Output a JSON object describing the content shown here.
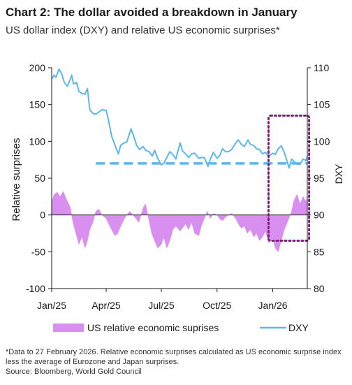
{
  "title": "Chart 2: The dollar avoided a breakdown in January",
  "subtitle": "US dollar index (DXY) and relative US economic surprises*",
  "footnote": "*Data to 27 February 2026. Relative economic surprises calculated as US economic surprise index less the average of Eurozone and Japan surprises.",
  "source": "Source: Bloomberg, World Gold Council",
  "colors": {
    "area": "#d98ff0",
    "line": "#5bb8e8",
    "highlight": "#7b1f7b",
    "axis": "#1a1a1a"
  },
  "chart_data": {
    "type": "area+line",
    "x_type": "date",
    "x_range": [
      "2025-01-01",
      "2026-02-27"
    ],
    "x_ticks": [
      {
        "date": "2025-01-01",
        "label": "Jan/25"
      },
      {
        "date": "2025-04-01",
        "label": "Apr/25"
      },
      {
        "date": "2025-07-01",
        "label": "Jul/25"
      },
      {
        "date": "2025-10-01",
        "label": "Oct/25"
      },
      {
        "date": "2026-01-01",
        "label": "Jan/26"
      }
    ],
    "y_left": {
      "label": "Relative surprises",
      "range": [
        -100,
        200
      ],
      "ticks": [
        "-100",
        "-50",
        "0",
        "50",
        "100",
        "150",
        "200"
      ]
    },
    "y_right": {
      "label": "DXY",
      "range": [
        80,
        110
      ],
      "ticks": [
        "80",
        "85",
        "90",
        "95",
        "100",
        "105",
        "110"
      ]
    },
    "series": [
      {
        "name": "US relative economic suprises",
        "type": "area",
        "axis": "left",
        "points": [
          [
            "2025-01-01",
            18
          ],
          [
            "2025-01-05",
            28
          ],
          [
            "2025-01-10",
            31
          ],
          [
            "2025-01-15",
            25
          ],
          [
            "2025-01-20",
            32
          ],
          [
            "2025-01-25",
            22
          ],
          [
            "2025-02-01",
            10
          ],
          [
            "2025-02-05",
            -10
          ],
          [
            "2025-02-10",
            -25
          ],
          [
            "2025-02-15",
            -40
          ],
          [
            "2025-02-20",
            -30
          ],
          [
            "2025-02-25",
            -45
          ],
          [
            "2025-03-01",
            -35
          ],
          [
            "2025-03-05",
            -20
          ],
          [
            "2025-03-10",
            -10
          ],
          [
            "2025-03-15",
            5
          ],
          [
            "2025-03-20",
            8
          ],
          [
            "2025-03-25",
            0
          ],
          [
            "2025-04-01",
            -5
          ],
          [
            "2025-04-05",
            -12
          ],
          [
            "2025-04-10",
            -20
          ],
          [
            "2025-04-15",
            -28
          ],
          [
            "2025-04-20",
            -25
          ],
          [
            "2025-04-25",
            -15
          ],
          [
            "2025-05-01",
            -5
          ],
          [
            "2025-05-05",
            0
          ],
          [
            "2025-05-10",
            5
          ],
          [
            "2025-05-15",
            0
          ],
          [
            "2025-05-20",
            -5
          ],
          [
            "2025-05-25",
            -10
          ],
          [
            "2025-06-01",
            10
          ],
          [
            "2025-06-05",
            15
          ],
          [
            "2025-06-10",
            -5
          ],
          [
            "2025-06-15",
            -25
          ],
          [
            "2025-06-20",
            -35
          ],
          [
            "2025-06-25",
            -45
          ],
          [
            "2025-07-01",
            -40
          ],
          [
            "2025-07-05",
            -30
          ],
          [
            "2025-07-10",
            -45
          ],
          [
            "2025-07-15",
            -35
          ],
          [
            "2025-07-20",
            -20
          ],
          [
            "2025-07-25",
            -15
          ],
          [
            "2025-08-01",
            -22
          ],
          [
            "2025-08-05",
            -18
          ],
          [
            "2025-08-10",
            -12
          ],
          [
            "2025-08-15",
            -20
          ],
          [
            "2025-08-20",
            -10
          ],
          [
            "2025-08-25",
            -25
          ],
          [
            "2025-09-01",
            -28
          ],
          [
            "2025-09-05",
            -15
          ],
          [
            "2025-09-10",
            -5
          ],
          [
            "2025-09-15",
            5
          ],
          [
            "2025-09-20",
            -5
          ],
          [
            "2025-09-25",
            2
          ],
          [
            "2025-10-01",
            0
          ],
          [
            "2025-10-05",
            -5
          ],
          [
            "2025-10-10",
            -8
          ],
          [
            "2025-10-15",
            -3
          ],
          [
            "2025-10-20",
            0
          ],
          [
            "2025-10-25",
            2
          ],
          [
            "2025-11-01",
            -5
          ],
          [
            "2025-11-05",
            -12
          ],
          [
            "2025-11-10",
            -18
          ],
          [
            "2025-11-15",
            -15
          ],
          [
            "2025-11-20",
            -25
          ],
          [
            "2025-11-25",
            -20
          ],
          [
            "2025-12-01",
            -30
          ],
          [
            "2025-12-05",
            -25
          ],
          [
            "2025-12-10",
            -35
          ],
          [
            "2025-12-15",
            -30
          ],
          [
            "2025-12-20",
            -22
          ],
          [
            "2025-12-25",
            -38
          ],
          [
            "2026-01-01",
            -32
          ],
          [
            "2026-01-05",
            -45
          ],
          [
            "2026-01-10",
            -50
          ],
          [
            "2026-01-15",
            -35
          ],
          [
            "2026-01-20",
            -20
          ],
          [
            "2026-01-25",
            -10
          ],
          [
            "2026-02-01",
            5
          ],
          [
            "2026-02-05",
            20
          ],
          [
            "2026-02-10",
            28
          ],
          [
            "2026-02-15",
            15
          ],
          [
            "2026-02-20",
            25
          ],
          [
            "2026-02-25",
            18
          ],
          [
            "2026-02-27",
            28
          ]
        ]
      },
      {
        "name": "DXY",
        "type": "line",
        "axis": "right",
        "points": [
          [
            "2025-01-01",
            108.5
          ],
          [
            "2025-01-05",
            109.0
          ],
          [
            "2025-01-08",
            108.7
          ],
          [
            "2025-01-13",
            109.8
          ],
          [
            "2025-01-17",
            109.3
          ],
          [
            "2025-01-22",
            108.0
          ],
          [
            "2025-01-27",
            107.5
          ],
          [
            "2025-02-01",
            108.5
          ],
          [
            "2025-02-03",
            109.0
          ],
          [
            "2025-02-06",
            107.8
          ],
          [
            "2025-02-11",
            108.0
          ],
          [
            "2025-02-15",
            106.8
          ],
          [
            "2025-02-20",
            106.5
          ],
          [
            "2025-02-25",
            106.4
          ],
          [
            "2025-03-01",
            107.2
          ],
          [
            "2025-03-05",
            104.3
          ],
          [
            "2025-03-10",
            103.8
          ],
          [
            "2025-03-15",
            103.7
          ],
          [
            "2025-03-20",
            104.0
          ],
          [
            "2025-03-25",
            104.3
          ],
          [
            "2025-04-01",
            104.2
          ],
          [
            "2025-04-05",
            102.8
          ],
          [
            "2025-04-10",
            100.7
          ],
          [
            "2025-04-15",
            99.6
          ],
          [
            "2025-04-21",
            98.3
          ],
          [
            "2025-04-25",
            99.5
          ],
          [
            "2025-05-01",
            99.8
          ],
          [
            "2025-05-05",
            99.9
          ],
          [
            "2025-05-12",
            101.7
          ],
          [
            "2025-05-16",
            100.8
          ],
          [
            "2025-05-21",
            99.5
          ],
          [
            "2025-05-26",
            98.9
          ],
          [
            "2025-06-01",
            99.3
          ],
          [
            "2025-06-05",
            98.8
          ],
          [
            "2025-06-11",
            98.6
          ],
          [
            "2025-06-16",
            98.0
          ],
          [
            "2025-06-20",
            98.8
          ],
          [
            "2025-06-25",
            97.7
          ],
          [
            "2025-07-01",
            96.8
          ],
          [
            "2025-07-05",
            97.0
          ],
          [
            "2025-07-10",
            97.8
          ],
          [
            "2025-07-15",
            98.6
          ],
          [
            "2025-07-20",
            98.2
          ],
          [
            "2025-07-25",
            97.6
          ],
          [
            "2025-08-01",
            99.8
          ],
          [
            "2025-08-05",
            98.7
          ],
          [
            "2025-08-10",
            98.3
          ],
          [
            "2025-08-15",
            97.8
          ],
          [
            "2025-08-20",
            98.3
          ],
          [
            "2025-08-25",
            98.4
          ],
          [
            "2025-09-01",
            97.7
          ],
          [
            "2025-09-05",
            97.8
          ],
          [
            "2025-09-10",
            97.8
          ],
          [
            "2025-09-16",
            96.6
          ],
          [
            "2025-09-20",
            97.6
          ],
          [
            "2025-09-25",
            98.5
          ],
          [
            "2025-10-01",
            97.7
          ],
          [
            "2025-10-05",
            98.0
          ],
          [
            "2025-10-10",
            99.0
          ],
          [
            "2025-10-15",
            98.6
          ],
          [
            "2025-10-20",
            98.6
          ],
          [
            "2025-10-25",
            98.9
          ],
          [
            "2025-11-01",
            99.8
          ],
          [
            "2025-11-05",
            100.2
          ],
          [
            "2025-11-10",
            99.6
          ],
          [
            "2025-11-15",
            99.3
          ],
          [
            "2025-11-21",
            100.2
          ],
          [
            "2025-11-25",
            99.6
          ],
          [
            "2025-12-01",
            99.4
          ],
          [
            "2025-12-05",
            99.0
          ],
          [
            "2025-12-10",
            98.9
          ],
          [
            "2025-12-15",
            98.3
          ],
          [
            "2025-12-20",
            98.5
          ],
          [
            "2025-12-25",
            98.0
          ],
          [
            "2026-01-01",
            98.4
          ],
          [
            "2026-01-05",
            98.2
          ],
          [
            "2026-01-10",
            99.0
          ],
          [
            "2026-01-15",
            99.4
          ],
          [
            "2026-01-20",
            98.5
          ],
          [
            "2026-01-25",
            97.2
          ],
          [
            "2026-01-28",
            96.4
          ],
          [
            "2026-02-01",
            97.6
          ],
          [
            "2026-02-05",
            97.3
          ],
          [
            "2026-02-10",
            96.9
          ],
          [
            "2026-02-15",
            96.9
          ],
          [
            "2026-02-20",
            97.6
          ],
          [
            "2026-02-25",
            97.4
          ],
          [
            "2026-02-27",
            98.0
          ]
        ]
      }
    ],
    "reference_line": {
      "axis": "left",
      "value": 70,
      "from": "2025-03-15",
      "to": "2026-02-27",
      "style": "dashed"
    },
    "highlight_box": {
      "from": "2025-12-25",
      "to": "2026-03-02",
      "y_left": [
        -35,
        135
      ],
      "style": "dotted"
    },
    "grid": false,
    "legend": "bottom"
  }
}
